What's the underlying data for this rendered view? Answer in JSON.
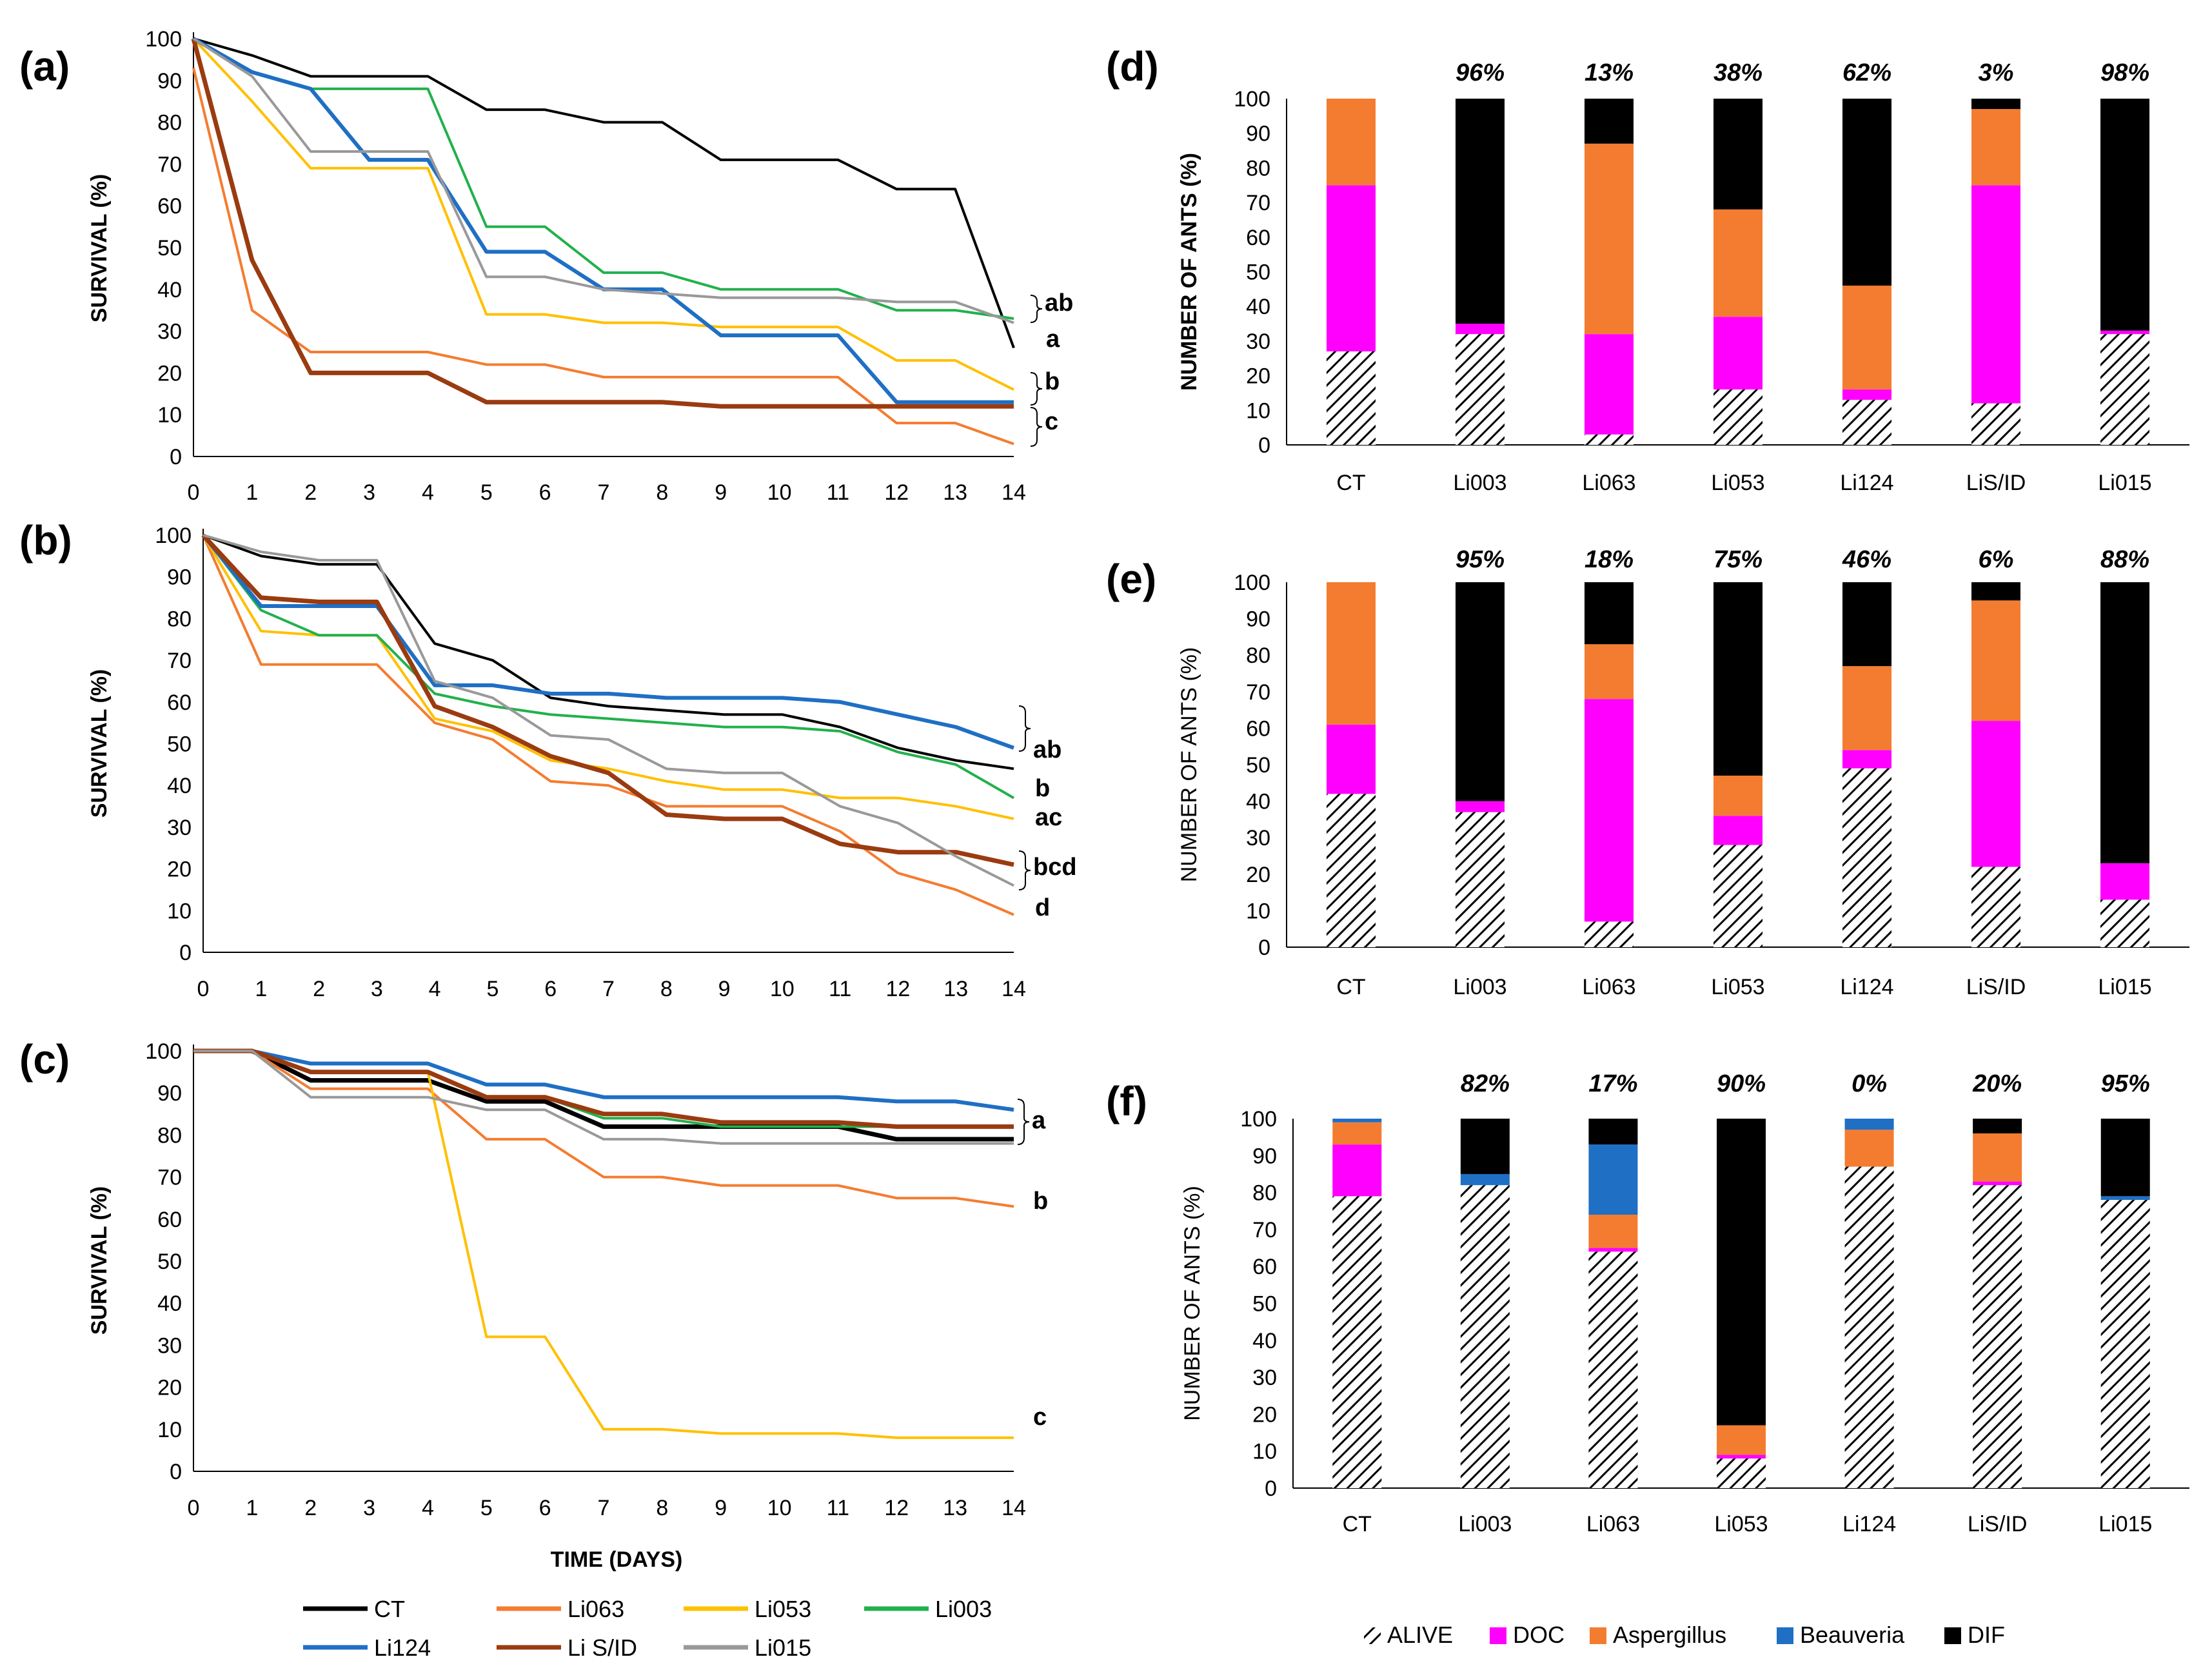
{
  "legend_lines": [
    {
      "name": "CT",
      "color": "#000000"
    },
    {
      "name": "Li063",
      "color": "#f47c30"
    },
    {
      "name": "Li053",
      "color": "#ffc000"
    },
    {
      "name": "Li003",
      "color": "#22b14c"
    },
    {
      "name": "Li124",
      "color": "#1f6fc4"
    },
    {
      "name": "Li S/ID",
      "color": "#9a3b10"
    },
    {
      "name": "Li015",
      "color": "#999999"
    }
  ],
  "legend_bars": [
    {
      "name": "ALIVE",
      "pattern": "hatch"
    },
    {
      "name": "DOC",
      "color": "#ff00ff"
    },
    {
      "name": "Aspergillus",
      "color": "#f47c30"
    },
    {
      "name": "Beauveria",
      "color": "#1f6fc4"
    },
    {
      "name": "DIF",
      "color": "#000000"
    }
  ],
  "chart_data": [
    {
      "panel": "(a)",
      "type": "line",
      "xlabel": "",
      "ylabel": "SURVIVAL (%)",
      "x": [
        0,
        1,
        2,
        3,
        4,
        5,
        6,
        7,
        8,
        9,
        10,
        11,
        12,
        13,
        14
      ],
      "ylim": [
        0,
        100
      ],
      "yticks": [
        0,
        10,
        20,
        30,
        40,
        50,
        60,
        70,
        80,
        90,
        100
      ],
      "series": [
        {
          "name": "CT",
          "values": [
            100,
            96,
            91,
            91,
            91,
            83,
            83,
            80,
            80,
            71,
            71,
            71,
            64,
            64,
            26
          ]
        },
        {
          "name": "Li063",
          "values": [
            93,
            35,
            25,
            25,
            25,
            22,
            22,
            19,
            19,
            19,
            19,
            19,
            8,
            8,
            3
          ]
        },
        {
          "name": "Li053",
          "values": [
            100,
            85,
            69,
            69,
            69,
            34,
            34,
            32,
            32,
            31,
            31,
            31,
            23,
            23,
            16
          ]
        },
        {
          "name": "Li003",
          "values": [
            100,
            92,
            88,
            88,
            88,
            55,
            55,
            44,
            44,
            40,
            40,
            40,
            35,
            35,
            33
          ]
        },
        {
          "name": "Li124",
          "values": [
            100,
            92,
            88,
            71,
            71,
            49,
            49,
            40,
            40,
            29,
            29,
            29,
            13,
            13,
            13
          ]
        },
        {
          "name": "Li S/ID",
          "values": [
            100,
            47,
            20,
            20,
            20,
            13,
            13,
            13,
            13,
            12,
            12,
            12,
            12,
            12,
            12
          ]
        },
        {
          "name": "Li015",
          "values": [
            100,
            91,
            73,
            73,
            73,
            43,
            43,
            40,
            39,
            38,
            38,
            38,
            37,
            37,
            32
          ]
        }
      ],
      "annotations": [
        "ab",
        "a",
        "b",
        "c"
      ]
    },
    {
      "panel": "(b)",
      "type": "line",
      "xlabel": "",
      "ylabel": "SURVIVAL (%)",
      "x": [
        0,
        1,
        2,
        3,
        4,
        5,
        6,
        7,
        8,
        9,
        10,
        11,
        12,
        13,
        14
      ],
      "ylim": [
        0,
        100
      ],
      "yticks": [
        0,
        10,
        20,
        30,
        40,
        50,
        60,
        70,
        80,
        90,
        100
      ],
      "series": [
        {
          "name": "CT",
          "values": [
            100,
            95,
            93,
            93,
            74,
            70,
            61,
            59,
            58,
            57,
            57,
            54,
            49,
            46,
            44
          ]
        },
        {
          "name": "Li063",
          "values": [
            100,
            69,
            69,
            69,
            55,
            51,
            41,
            40,
            35,
            35,
            35,
            29,
            19,
            15,
            9
          ]
        },
        {
          "name": "Li053",
          "values": [
            100,
            77,
            76,
            76,
            56,
            53,
            46,
            44,
            41,
            39,
            39,
            37,
            37,
            35,
            32
          ]
        },
        {
          "name": "Li003",
          "values": [
            100,
            82,
            76,
            76,
            62,
            59,
            57,
            56,
            55,
            54,
            54,
            53,
            48,
            45,
            37
          ]
        },
        {
          "name": "Li124",
          "values": [
            100,
            83,
            83,
            83,
            64,
            64,
            62,
            62,
            61,
            61,
            61,
            60,
            57,
            54,
            49
          ]
        },
        {
          "name": "Li S/ID",
          "values": [
            100,
            85,
            84,
            84,
            59,
            54,
            47,
            43,
            33,
            32,
            32,
            26,
            24,
            24,
            21
          ]
        },
        {
          "name": "Li015",
          "values": [
            100,
            96,
            94,
            94,
            65,
            61,
            52,
            51,
            44,
            43,
            43,
            35,
            31,
            23,
            16
          ]
        }
      ],
      "annotations": [
        "ab",
        "b",
        "ac",
        "bcd",
        "d"
      ]
    },
    {
      "panel": "(c)",
      "type": "line",
      "xlabel": "TIME (DAYS)",
      "ylabel": "SURVIVAL (%)",
      "x": [
        0,
        1,
        2,
        3,
        4,
        5,
        6,
        7,
        8,
        9,
        10,
        11,
        12,
        13,
        14
      ],
      "ylim": [
        0,
        100
      ],
      "yticks": [
        0,
        10,
        20,
        30,
        40,
        50,
        60,
        70,
        80,
        90,
        100
      ],
      "series": [
        {
          "name": "CT",
          "values": [
            100,
            100,
            93,
            93,
            93,
            88,
            88,
            82,
            82,
            82,
            82,
            82,
            79,
            79,
            79
          ]
        },
        {
          "name": "Li063",
          "values": [
            100,
            100,
            91,
            91,
            91,
            79,
            79,
            70,
            70,
            68,
            68,
            68,
            65,
            65,
            63
          ]
        },
        {
          "name": "Li053",
          "values": [
            100,
            100,
            95,
            95,
            95,
            32,
            32,
            10,
            10,
            9,
            9,
            9,
            8,
            8,
            8
          ]
        },
        {
          "name": "Li003",
          "values": [
            100,
            100,
            95,
            95,
            95,
            89,
            89,
            84,
            84,
            82,
            82,
            82,
            82,
            82,
            82
          ]
        },
        {
          "name": "Li124",
          "values": [
            100,
            100,
            97,
            97,
            97,
            92,
            92,
            89,
            89,
            89,
            89,
            89,
            88,
            88,
            86
          ]
        },
        {
          "name": "Li S/ID",
          "values": [
            100,
            100,
            95,
            95,
            95,
            89,
            89,
            85,
            85,
            83,
            83,
            83,
            82,
            82,
            82
          ]
        },
        {
          "name": "Li015",
          "values": [
            100,
            100,
            89,
            89,
            89,
            86,
            86,
            79,
            79,
            78,
            78,
            78,
            78,
            78,
            78
          ]
        }
      ],
      "annotations": [
        "a",
        "b",
        "c"
      ]
    },
    {
      "panel": "(d)",
      "type": "bar",
      "stacked": true,
      "ylabel": "NUMBER OF ANTS (%)",
      "ylabel_bold": true,
      "ylim": [
        0,
        100
      ],
      "yticks": [
        0,
        10,
        20,
        30,
        40,
        50,
        60,
        70,
        80,
        90,
        100
      ],
      "categories": [
        "CT",
        "Li003",
        "Li063",
        "Li053",
        "Li124",
        "LiS/ID",
        "Li015"
      ],
      "top_labels": [
        "",
        "96%",
        "13%",
        "38%",
        "62%",
        "3%",
        "98%"
      ],
      "series": [
        {
          "name": "ALIVE",
          "values": [
            27,
            32,
            3,
            16,
            13,
            12,
            32
          ]
        },
        {
          "name": "DOC",
          "values": [
            48,
            3,
            29,
            21,
            3,
            63,
            1
          ]
        },
        {
          "name": "Aspergillus",
          "values": [
            25,
            0,
            55,
            31,
            30,
            22,
            0
          ]
        },
        {
          "name": "Beauveria",
          "values": [
            0,
            0,
            0,
            0,
            0,
            0,
            0
          ]
        },
        {
          "name": "DIF",
          "values": [
            0,
            65,
            13,
            32,
            54,
            3,
            67
          ]
        }
      ]
    },
    {
      "panel": "(e)",
      "type": "bar",
      "stacked": true,
      "ylabel": "NUMBER OF ANTS (%)",
      "ylabel_bold": false,
      "ylim": [
        0,
        100
      ],
      "yticks": [
        0,
        10,
        20,
        30,
        40,
        50,
        60,
        70,
        80,
        90,
        100
      ],
      "categories": [
        "CT",
        "Li003",
        "Li063",
        "Li053",
        "Li124",
        "LiS/ID",
        "Li015"
      ],
      "top_labels": [
        "",
        "95%",
        "18%",
        "75%",
        "46%",
        "6%",
        "88%"
      ],
      "series": [
        {
          "name": "ALIVE",
          "values": [
            42,
            37,
            7,
            28,
            49,
            22,
            13
          ]
        },
        {
          "name": "DOC",
          "values": [
            19,
            3,
            61,
            8,
            5,
            40,
            10
          ]
        },
        {
          "name": "Aspergillus",
          "values": [
            39,
            0,
            15,
            11,
            23,
            33,
            0
          ]
        },
        {
          "name": "Beauveria",
          "values": [
            0,
            0,
            0,
            0,
            0,
            0,
            0
          ]
        },
        {
          "name": "DIF",
          "values": [
            0,
            60,
            17,
            53,
            23,
            5,
            77
          ]
        }
      ]
    },
    {
      "panel": "(f)",
      "type": "bar",
      "stacked": true,
      "ylabel": "NUMBER OF ANTS (%)",
      "ylabel_bold": false,
      "ylim": [
        0,
        100
      ],
      "yticks": [
        0,
        10,
        20,
        30,
        40,
        50,
        60,
        70,
        80,
        90,
        100
      ],
      "categories": [
        "CT",
        "Li003",
        "Li063",
        "Li053",
        "Li124",
        "LiS/ID",
        "Li015"
      ],
      "top_labels": [
        "",
        "82%",
        "17%",
        "90%",
        "0%",
        "20%",
        "95%"
      ],
      "series": [
        {
          "name": "ALIVE",
          "values": [
            79,
            82,
            64,
            8,
            87,
            82,
            78
          ]
        },
        {
          "name": "DOC",
          "values": [
            14,
            0,
            1,
            1,
            0,
            1,
            0
          ]
        },
        {
          "name": "Aspergillus",
          "values": [
            6,
            0,
            9,
            8,
            10,
            13,
            0
          ]
        },
        {
          "name": "Beauveria",
          "values": [
            1,
            3,
            19,
            0,
            3,
            0,
            1
          ]
        },
        {
          "name": "DIF",
          "values": [
            0,
            15,
            7,
            83,
            0,
            4,
            21
          ]
        }
      ]
    }
  ]
}
